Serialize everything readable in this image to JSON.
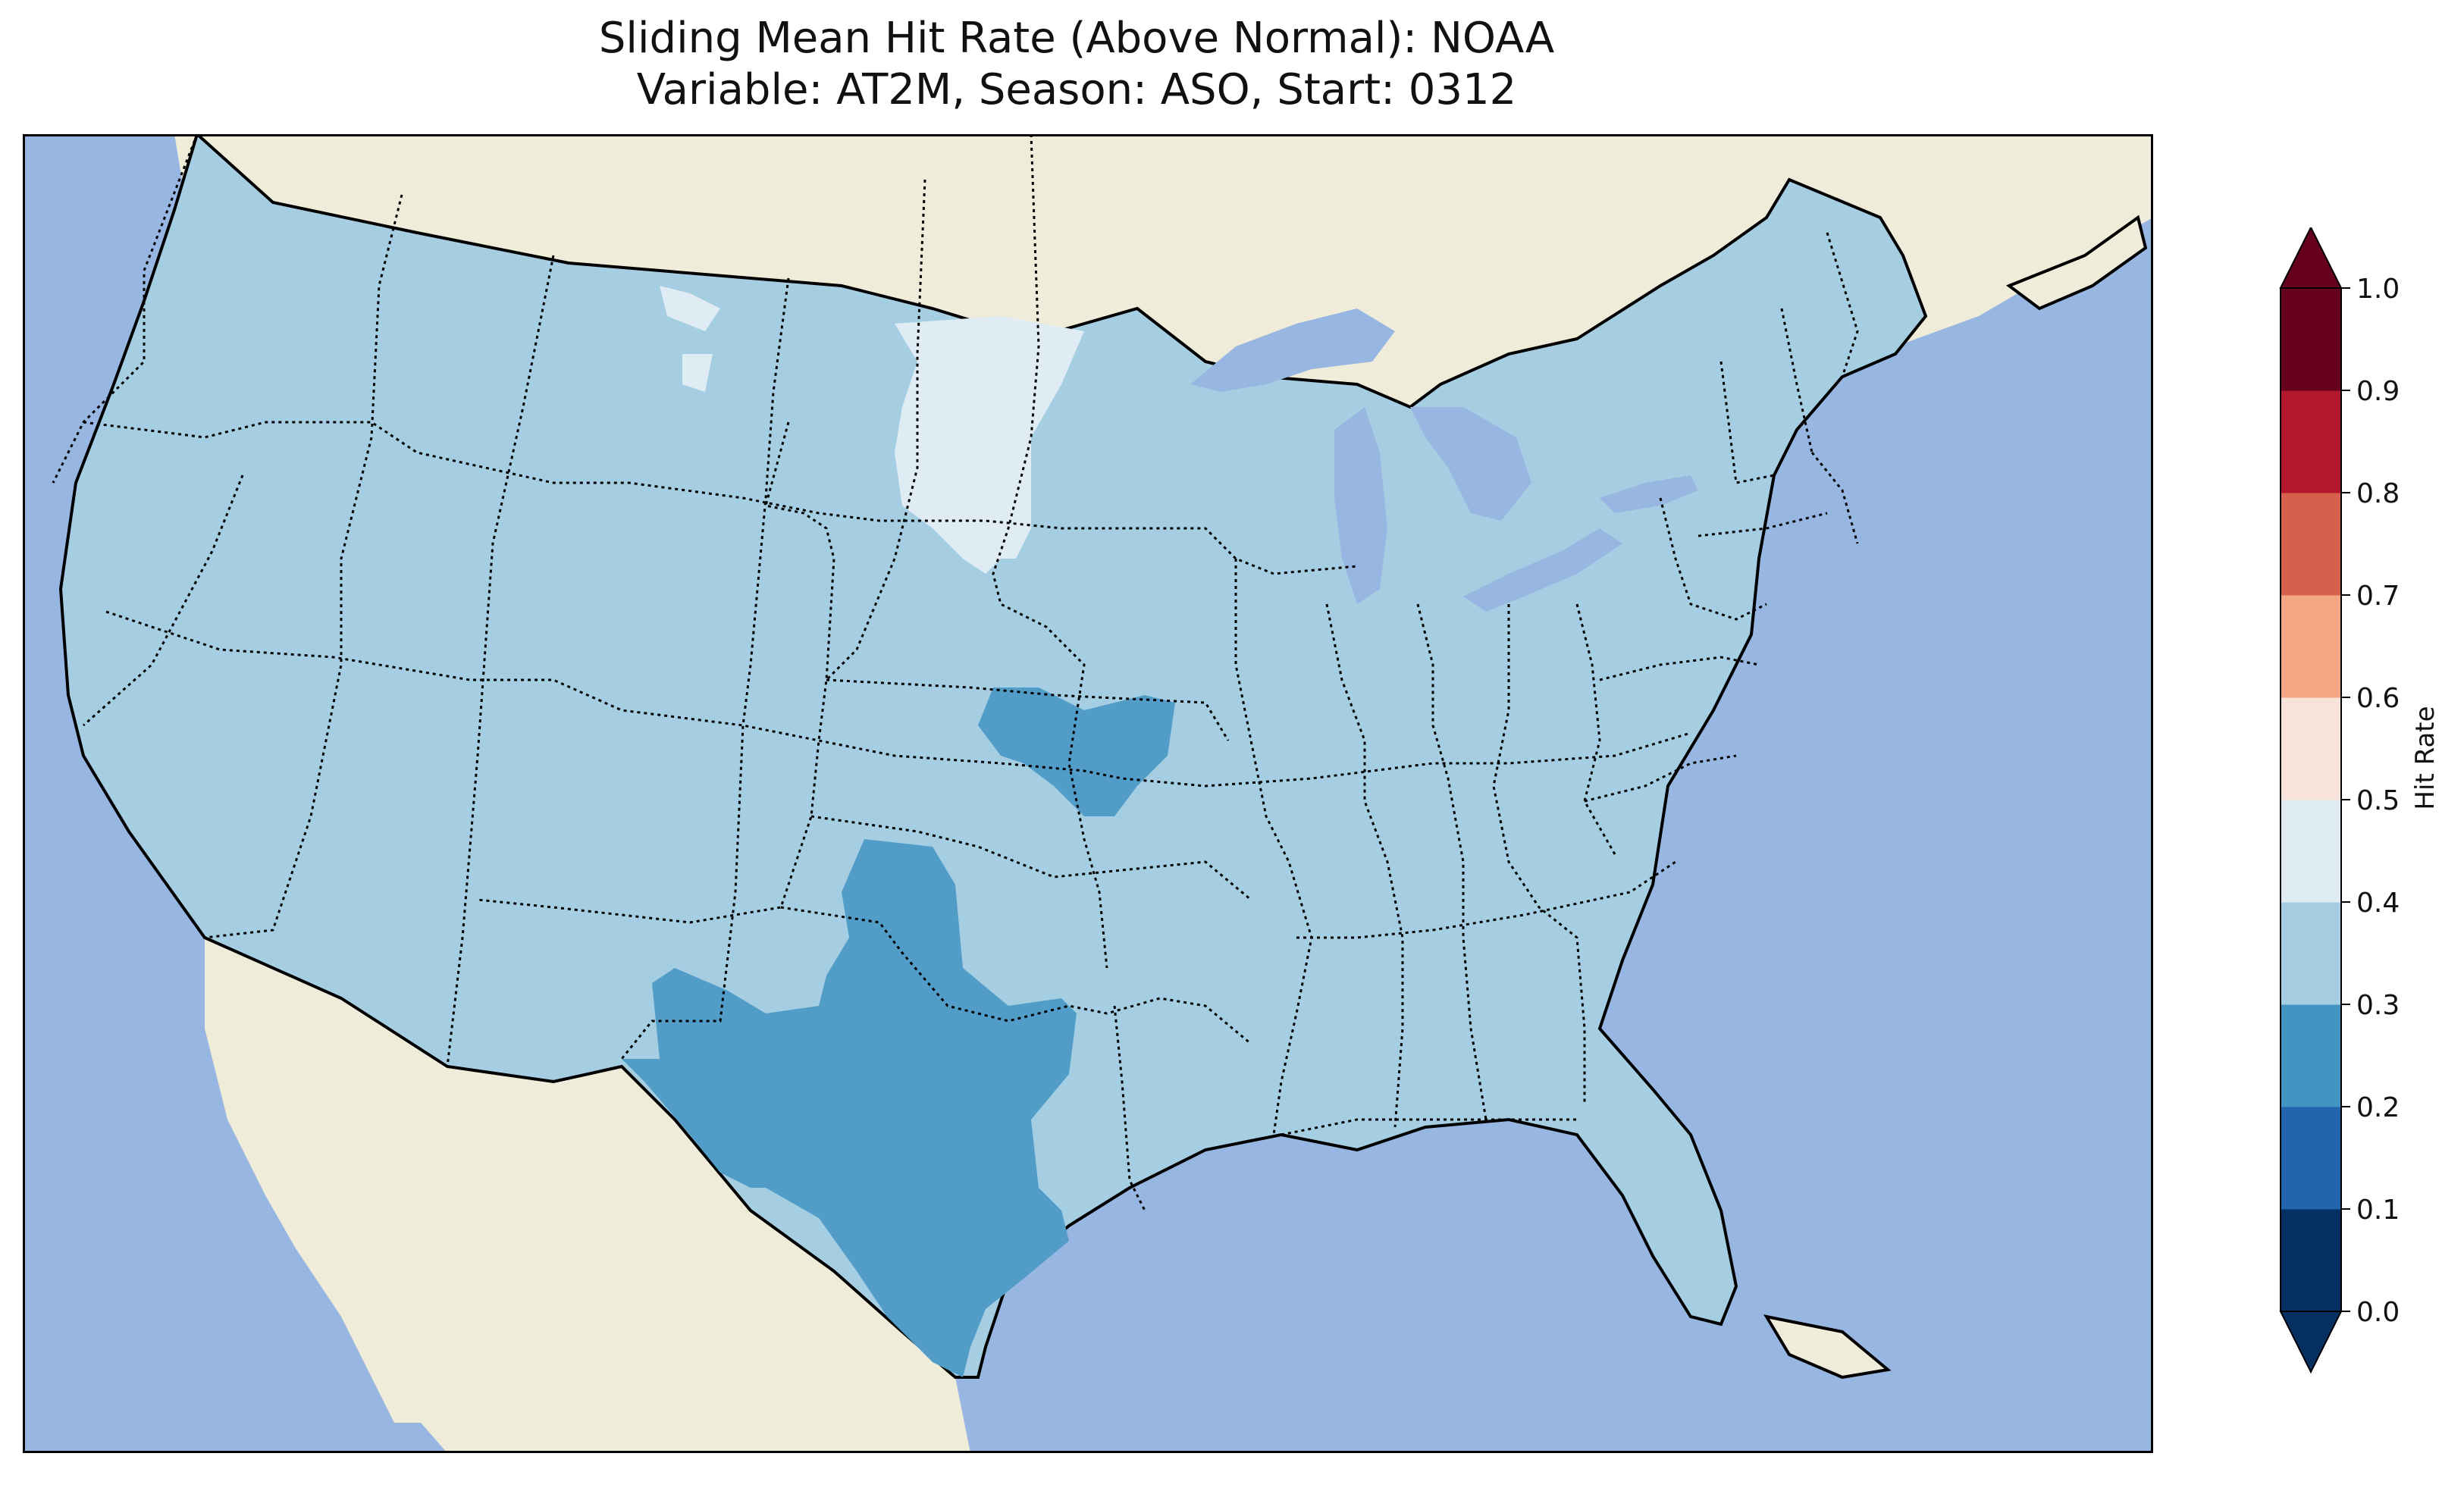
{
  "title": {
    "line1": "Sliding Mean Hit Rate (Above Normal): NOAA",
    "line2": "Variable: AT2M, Season: ASO, Start: 0312"
  },
  "map": {
    "region": "Contiguous United States",
    "projection": "PlateCarree",
    "ocean_color": "#97b6e1",
    "land_color": "#efedda",
    "lake_color": "#97b6e1",
    "coastline": "black solid",
    "borders": "black dotted",
    "data_regions": [
      {
        "name": "CONUS",
        "value_bin": "0.3-0.4",
        "color": "#a6cee3"
      },
      {
        "name": "Northern Plains",
        "value_bin": "0.4-0.5",
        "color": "#e0ecf4"
      },
      {
        "name": "Texas",
        "value_bin": "0.2-0.3",
        "color": "#529dc8"
      },
      {
        "name": "Kansas-Missouri",
        "value_bin": "0.2-0.3",
        "color": "#529dc8"
      }
    ]
  },
  "colorbar": {
    "label": "Hit Rate",
    "ticks": [
      "0.0",
      "0.1",
      "0.2",
      "0.3",
      "0.4",
      "0.5",
      "0.6",
      "0.7",
      "0.8",
      "0.9",
      "1.0"
    ],
    "colors": [
      "#053061",
      "#2166ac",
      "#4393c3",
      "#a6cee3",
      "#e0ecf4",
      "#f7e3d9",
      "#f4a582",
      "#d6604d",
      "#b2182b",
      "#67001f"
    ],
    "extend": "both"
  }
}
